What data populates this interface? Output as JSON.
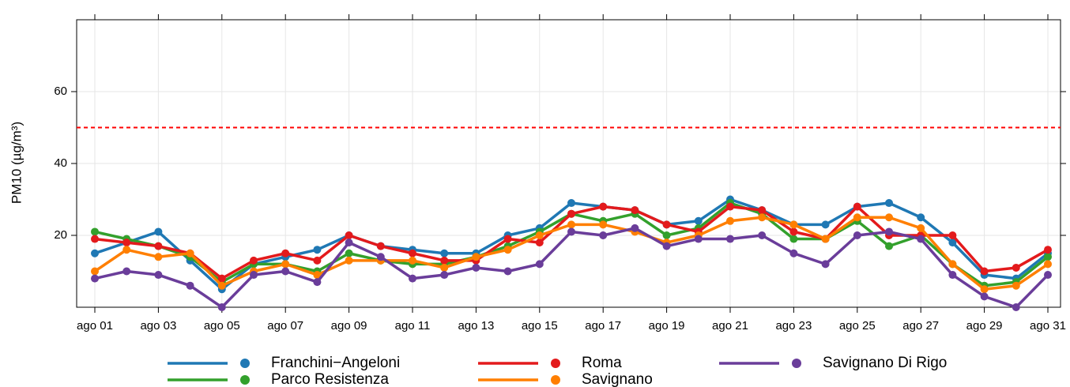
{
  "chart_data": {
    "type": "line",
    "y_label": "PM10 (µg/m³)",
    "categories": [
      "ago 01",
      null,
      "ago 03",
      null,
      "ago 05",
      null,
      "ago 07",
      null,
      "ago 09",
      null,
      "ago 11",
      null,
      "ago 13",
      null,
      "ago 15",
      null,
      "ago 17",
      null,
      "ago 19",
      null,
      "ago 21",
      null,
      "ago 23",
      null,
      "ago 25",
      null,
      "ago 27",
      null,
      "ago 29",
      null,
      "ago 31"
    ],
    "series": [
      {
        "name": "Franchini−Angeloni",
        "color": "#1f78b4",
        "values": [
          15,
          18,
          21,
          13,
          5,
          12,
          14,
          16,
          20,
          17,
          16,
          15,
          15,
          20,
          22,
          29,
          28,
          27,
          23,
          24,
          30,
          27,
          23,
          23,
          28,
          29,
          25,
          18,
          9,
          8,
          15
        ]
      },
      {
        "name": "Parco Resistenza",
        "color": "#33a02c",
        "values": [
          21,
          19,
          17,
          14,
          7,
          12,
          12,
          10,
          15,
          13,
          12,
          12,
          14,
          17,
          21,
          26,
          24,
          26,
          20,
          22,
          29,
          26,
          19,
          19,
          24,
          17,
          20,
          12,
          6,
          7,
          14
        ]
      },
      {
        "name": "Roma",
        "color": "#e31a1c",
        "values": [
          19,
          18,
          17,
          15,
          8,
          13,
          15,
          13,
          20,
          17,
          15,
          13,
          13,
          19,
          18,
          26,
          28,
          27,
          23,
          21,
          28,
          27,
          21,
          19,
          28,
          20,
          20,
          20,
          10,
          11,
          16
        ]
      },
      {
        "name": "Savignano",
        "color": "#ff7f00",
        "values": [
          10,
          16,
          14,
          15,
          6,
          10,
          12,
          9,
          13,
          13,
          13,
          11,
          14,
          16,
          20,
          23,
          23,
          21,
          18,
          20,
          24,
          25,
          23,
          19,
          25,
          25,
          22,
          12,
          5,
          6,
          12
        ]
      },
      {
        "name": "Savignano Di Rigo",
        "color": "#6a3d9a",
        "values": [
          8,
          10,
          9,
          6,
          0,
          9,
          10,
          7,
          18,
          14,
          8,
          9,
          11,
          10,
          12,
          21,
          20,
          22,
          17,
          19,
          19,
          20,
          15,
          12,
          20,
          21,
          19,
          9,
          3,
          0,
          9
        ]
      }
    ],
    "ylim": [
      0,
      80
    ],
    "yticks": [
      20,
      40,
      60
    ],
    "grid": true,
    "hline": {
      "value": 50,
      "color": "#ff0000"
    },
    "legend": "bottom"
  }
}
